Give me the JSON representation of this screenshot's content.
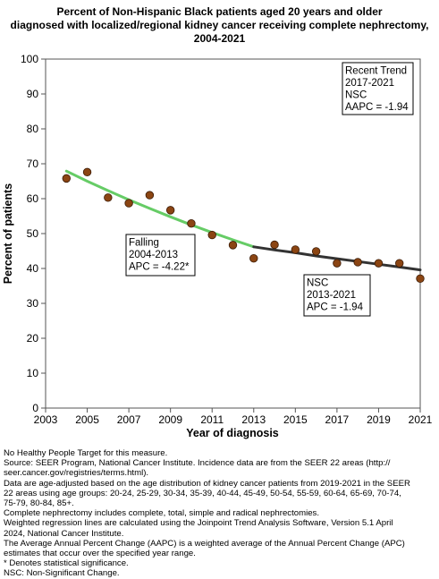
{
  "chart_data": {
    "type": "scatter",
    "title": [
      "Percent of Non-Hispanic Black patients aged 20 years and older",
      "diagnosed with localized/regional kidney cancer receiving complete nephrectomy,",
      "2004-2021"
    ],
    "xlabel": "Year of diagnosis",
    "ylabel": "Percent of patients",
    "xlim": [
      2003,
      2021
    ],
    "ylim": [
      0,
      100
    ],
    "x_ticks": [
      2003,
      2005,
      2007,
      2009,
      2011,
      2013,
      2015,
      2017,
      2019,
      2021
    ],
    "y_ticks": [
      0,
      10,
      20,
      30,
      40,
      50,
      60,
      70,
      80,
      90,
      100
    ],
    "grid": false,
    "series": [
      {
        "kind": "observed",
        "color": "#8B4513",
        "x": [
          2004,
          2005,
          2006,
          2007,
          2008,
          2009,
          2010,
          2011,
          2012,
          2013,
          2014,
          2015,
          2016,
          2017,
          2018,
          2019,
          2020,
          2021
        ],
        "y": [
          65.8,
          67.6,
          60.3,
          58.7,
          61.0,
          56.7,
          52.9,
          49.6,
          46.7,
          42.9,
          46.8,
          45.4,
          44.9,
          41.5,
          41.8,
          41.5,
          41.5,
          37.1
        ]
      },
      {
        "kind": "trend",
        "color": "#66cc66",
        "x": [
          2004,
          2005,
          2006,
          2007,
          2008,
          2009,
          2010,
          2011,
          2012,
          2013
        ],
        "y": [
          67.9,
          65.0,
          62.3,
          59.7,
          57.2,
          54.8,
          52.5,
          50.3,
          48.2,
          46.2
        ]
      },
      {
        "kind": "trend",
        "color": "#333333",
        "x": [
          2013,
          2014,
          2015,
          2016,
          2017,
          2018,
          2019,
          2020,
          2021
        ],
        "y": [
          46.2,
          45.3,
          44.5,
          43.6,
          42.8,
          42.0,
          41.2,
          40.4,
          39.6
        ]
      }
    ],
    "annotations": [
      {
        "id": "recent",
        "lines": [
          "Recent Trend",
          "2017-2021",
          "NSC",
          "AAPC = -1.94"
        ]
      },
      {
        "id": "falling",
        "lines": [
          "Falling",
          "2004-2013",
          "APC = -4.22*"
        ]
      },
      {
        "id": "nsc",
        "lines": [
          "NSC",
          "2013-2021",
          "APC = -1.94"
        ]
      }
    ]
  },
  "footnotes": [
    "No Healthy People Target for this measure.",
    "Source: SEER Program, National Cancer Institute. Incidence data are from the SEER 22 areas (http://",
    "seer.cancer.gov/registries/terms.html).",
    "Data are age-adjusted based on the age distribution of kidney cancer patients from 2019-2021 in the SEER",
    "22 areas using age groups: 20-24, 25-29, 30-34, 35-39, 40-44, 45-49, 50-54, 55-59, 60-64, 65-69, 70-74,",
    "75-79, 80-84, 85+.",
    "Complete nephrectomy includes complete, total, simple and radical nephrectomies.",
    "Weighted regression lines are calculated using the Joinpoint Trend Analysis Software, Version 5.1 April",
    "2024, National Cancer Institute.",
    "The Average Annual Percent Change (AAPC) is a weighted average of the Annual Percent Change (APC)",
    "estimates that occur over the specified year range.",
    "* Denotes statistical significance.",
    "NSC: Non-Significant Change."
  ]
}
